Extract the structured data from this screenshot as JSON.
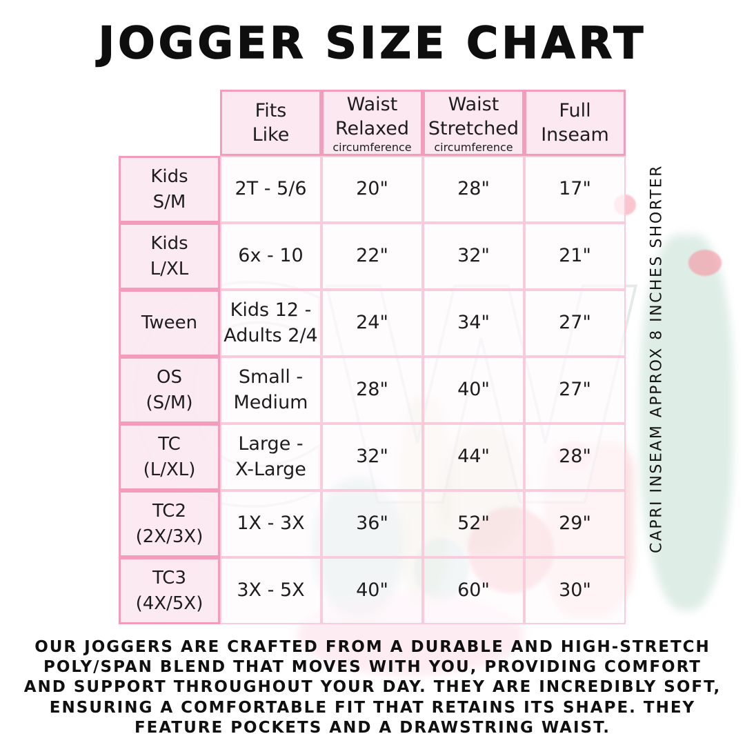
{
  "title": "JOGGER SIZE CHART",
  "watermark": "CW",
  "table": {
    "headers": [
      {
        "label": "Fits\nLike",
        "sub": ""
      },
      {
        "label": "Waist\nRelaxed",
        "sub": "circumference"
      },
      {
        "label": "Waist\nStretched",
        "sub": "circumference"
      },
      {
        "label": "Full\nInseam",
        "sub": ""
      }
    ],
    "rows": [
      {
        "label": "Kids\nS/M",
        "cells": [
          "2T - 5/6",
          "20\"",
          "28\"",
          "17\""
        ]
      },
      {
        "label": "Kids\nL/XL",
        "cells": [
          "6x - 10",
          "22\"",
          "32\"",
          "21\""
        ]
      },
      {
        "label": "Tween",
        "cells": [
          "Kids 12 -\nAdults 2/4",
          "24\"",
          "34\"",
          "27\""
        ]
      },
      {
        "label": "OS\n(S/M)",
        "cells": [
          "Small -\nMedium",
          "28\"",
          "40\"",
          "27\""
        ]
      },
      {
        "label": "TC\n(L/XL)",
        "cells": [
          "Large -\nX-Large",
          "32\"",
          "44\"",
          "28\""
        ]
      },
      {
        "label": "TC2\n(2X/3X)",
        "cells": [
          "1X - 3X",
          "36\"",
          "52\"",
          "29\""
        ]
      },
      {
        "label": "TC3\n(4X/5X)",
        "cells": [
          "3X - 5X",
          "40\"",
          "60\"",
          "30\""
        ]
      }
    ]
  },
  "side_note": "CAPRI INSEAM APPROX 8 INCHES SHORTER",
  "description": "OUR JOGGERS ARE CRAFTED FROM A DURABLE AND HIGH-STRETCH POLY/SPAN BLEND THAT MOVES WITH YOU, PROVIDING COMFORT AND SUPPORT THROUGHOUT YOUR DAY. THEY ARE INCREDIBLY SOFT, ENSURING A COMFORTABLE FIT THAT RETAINS ITS SHAPE. THEY FEATURE POCKETS AND A DRAWSTRING WAIST.",
  "colors": {
    "border_strong": "#f39dbb",
    "border_light": "#f9cbdc",
    "header_fill": "#fce7f0",
    "label_fill": "#fce9f1",
    "text": "#1d1d1d"
  }
}
